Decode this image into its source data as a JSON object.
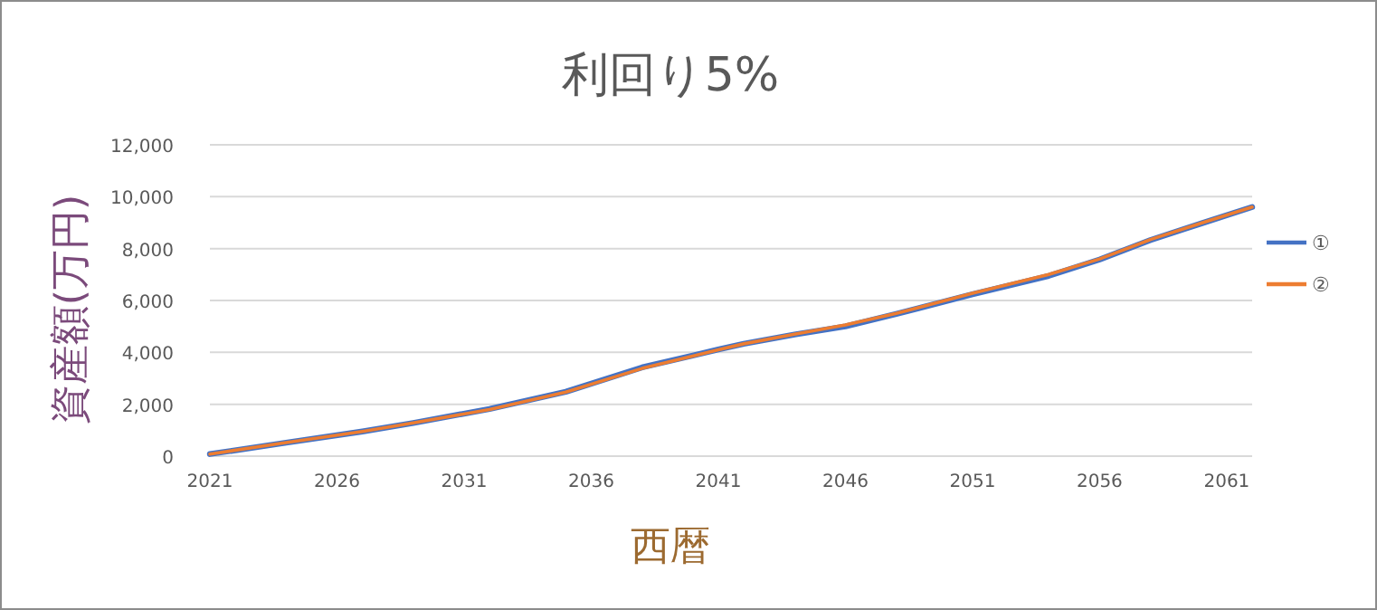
{
  "chart_data": {
    "type": "line",
    "title": "利回り5%",
    "xlabel": "西暦",
    "ylabel": "資産額(万円)",
    "x": [
      2021,
      2024,
      2027,
      2029,
      2032,
      2035,
      2038,
      2041,
      2042,
      2044,
      2046,
      2048,
      2051,
      2054,
      2056,
      2058,
      2060,
      2062
    ],
    "series": [
      {
        "name": "①",
        "color": "#4472c4",
        "values": [
          80,
          520,
          950,
          1280,
          1820,
          2480,
          3420,
          4110,
          4330,
          4690,
          5000,
          5480,
          6240,
          6950,
          7580,
          8330,
          8970,
          9600
        ]
      },
      {
        "name": "②",
        "color": "#ed7d31",
        "values": [
          80,
          520,
          950,
          1280,
          1800,
          2470,
          3380,
          4100,
          4330,
          4700,
          5060,
          5500,
          6280,
          7000,
          7600,
          8350,
          8980,
          9600
        ]
      }
    ],
    "xlim": [
      2021,
      2062
    ],
    "xticks": [
      2021,
      2026,
      2031,
      2036,
      2041,
      2046,
      2051,
      2056,
      2061
    ],
    "ylim": [
      0,
      12000
    ],
    "yticks": [
      {
        "value": 0,
        "label": "0"
      },
      {
        "value": 2000,
        "label": "2,000"
      },
      {
        "value": 4000,
        "label": "4,000"
      },
      {
        "value": 6000,
        "label": "6,000"
      },
      {
        "value": 8000,
        "label": "8,000"
      },
      {
        "value": 10000,
        "label": "10,000"
      },
      {
        "value": 12000,
        "label": "12,000"
      }
    ],
    "grid": "y",
    "legend": "right",
    "marker": "none",
    "line_style": "solid"
  }
}
